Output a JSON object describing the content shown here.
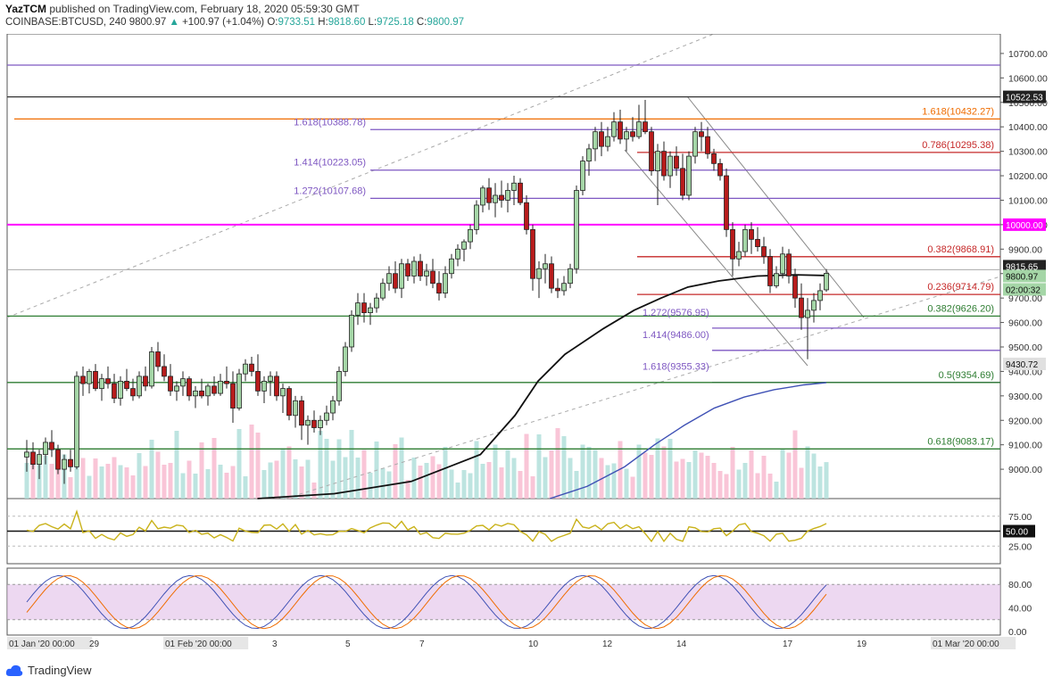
{
  "header": {
    "author": "YazTCM",
    "published_text": "published on TradingView.com, February 18, 2020 05:59:30 GMT",
    "symbol": "COINBASE:BTCUSD, 240",
    "last": "9800.97",
    "change": "+100.97 (+1.04%)",
    "o_label": "O:",
    "o_value": "9733.51",
    "h_label": "H:",
    "h_value": "9818.60",
    "l_label": "L:",
    "l_value": "9725.18",
    "c_label": "C:",
    "c_value": "9800.97"
  },
  "brand": {
    "name": "TradingView"
  },
  "colors": {
    "up": "#26a69a",
    "down": "#ef5350",
    "candle_up_fill": "#a5d6a7",
    "candle_down_fill": "#b71c1c",
    "fib_purple": "#7e57c2",
    "fib_red": "#c62828",
    "fib_orange": "#ef6c00",
    "fib_green": "#2e7d32",
    "magenta": "#ff00ff",
    "ma_black": "#111111",
    "ma_blue": "#3f51b5",
    "rsi": "#c9b21a",
    "stoch_bg": "#e1bee7"
  },
  "chart_data": {
    "type": "candlestick",
    "symbol": "COINBASE:BTCUSD",
    "timeframe": "240",
    "ylim": [
      8880,
      10780
    ],
    "y_ticks": [
      "10700.00",
      "10600.00",
      "10500.00",
      "10400.00",
      "10300.00",
      "10200.00",
      "10100.00",
      "10000.00",
      "9900.00",
      "9800.00",
      "9700.00",
      "9600.00",
      "9500.00",
      "9400.00",
      "9300.00",
      "9200.00",
      "9100.00",
      "9000.00"
    ],
    "x_ticks": [
      "01 Jan '20  00:00",
      "29",
      "01 Feb '20  00:00",
      "3",
      "5",
      "7",
      "10",
      "12",
      "14",
      "17",
      "19",
      "01 Mar '20  00:00"
    ],
    "price_badges": [
      {
        "text": "10522.53",
        "value": 10522.53,
        "kind": "dark"
      },
      {
        "text": "10000.00",
        "value": 10000,
        "kind": "magenta"
      },
      {
        "text": "9815.65",
        "value": 9815.65,
        "kind": "dark"
      },
      {
        "text": "9800.97",
        "value": 9800.97,
        "kind": "green"
      },
      {
        "text": "02:00:32",
        "value": 9770,
        "kind": "green"
      },
      {
        "text": "9430.72",
        "value": 9430.72,
        "kind": "gray"
      }
    ],
    "levels": [
      {
        "label": "1.618(10432.27)",
        "value": 10432.27,
        "color": "orange",
        "side": "right"
      },
      {
        "label": "1.618(10388.78)",
        "value": 10388.78,
        "color": "purple",
        "side": "left"
      },
      {
        "label": "0.786(10295.38)",
        "value": 10295.38,
        "color": "red",
        "side": "right"
      },
      {
        "label": "1.414(10223.05)",
        "value": 10223.05,
        "color": "purple",
        "side": "left"
      },
      {
        "label": "1.272(10107.68)",
        "value": 10107.68,
        "color": "purple",
        "side": "left"
      },
      {
        "label": "0.382(9868.91)",
        "value": 9868.91,
        "color": "red",
        "side": "right"
      },
      {
        "label": "0.236(9714.79)",
        "value": 9714.79,
        "color": "red",
        "side": "right"
      },
      {
        "label": "0.382(9626.20)",
        "value": 9626.2,
        "color": "green",
        "side": "right"
      },
      {
        "label": "1.272(9576.95)",
        "value": 9576.95,
        "color": "purple",
        "side": "mid"
      },
      {
        "label": "1.414(9486.00)",
        "value": 9486.0,
        "color": "purple",
        "side": "mid"
      },
      {
        "label": "1.618(9355.33)",
        "value": 9355.33,
        "color": "purple",
        "side": "mid"
      },
      {
        "label": "0.5(9354.69)",
        "value": 9354.69,
        "color": "green",
        "side": "right"
      },
      {
        "label": "0.618(9083.17)",
        "value": 9083.17,
        "color": "green",
        "side": "right"
      }
    ],
    "candles": [
      [
        9050,
        9120,
        8990,
        9070
      ],
      [
        9070,
        9110,
        9000,
        9020
      ],
      [
        9020,
        9080,
        8960,
        9060
      ],
      [
        9060,
        9130,
        9020,
        9110
      ],
      [
        9110,
        9160,
        9050,
        9080
      ],
      [
        9080,
        9100,
        8980,
        9000
      ],
      [
        9000,
        9060,
        8940,
        9040
      ],
      [
        9040,
        9080,
        8990,
        9010
      ],
      [
        9010,
        9400,
        9000,
        9380
      ],
      [
        9380,
        9420,
        9300,
        9350
      ],
      [
        9350,
        9410,
        9310,
        9400
      ],
      [
        9400,
        9430,
        9320,
        9330
      ],
      [
        9330,
        9390,
        9280,
        9370
      ],
      [
        9370,
        9420,
        9330,
        9350
      ],
      [
        9350,
        9390,
        9270,
        9290
      ],
      [
        9290,
        9380,
        9260,
        9360
      ],
      [
        9360,
        9410,
        9320,
        9330
      ],
      [
        9330,
        9370,
        9280,
        9300
      ],
      [
        9300,
        9400,
        9290,
        9380
      ],
      [
        9380,
        9420,
        9320,
        9340
      ],
      [
        9340,
        9500,
        9330,
        9480
      ],
      [
        9480,
        9520,
        9400,
        9420
      ],
      [
        9420,
        9470,
        9360,
        9380
      ],
      [
        9380,
        9430,
        9300,
        9320
      ],
      [
        9320,
        9360,
        9280,
        9340
      ],
      [
        9340,
        9400,
        9300,
        9370
      ],
      [
        9370,
        9380,
        9280,
        9300
      ],
      [
        9300,
        9340,
        9250,
        9320
      ],
      [
        9320,
        9370,
        9290,
        9300
      ],
      [
        9300,
        9350,
        9260,
        9340
      ],
      [
        9340,
        9380,
        9300,
        9310
      ],
      [
        9310,
        9390,
        9300,
        9360
      ],
      [
        9360,
        9420,
        9330,
        9350
      ],
      [
        9350,
        9400,
        9190,
        9250
      ],
      [
        9250,
        9410,
        9240,
        9390
      ],
      [
        9390,
        9450,
        9360,
        9430
      ],
      [
        9430,
        9460,
        9380,
        9400
      ],
      [
        9400,
        9470,
        9300,
        9320
      ],
      [
        9320,
        9380,
        9270,
        9360
      ],
      [
        9360,
        9400,
        9300,
        9380
      ],
      [
        9380,
        9400,
        9280,
        9300
      ],
      [
        9300,
        9350,
        9230,
        9330
      ],
      [
        9330,
        9340,
        9200,
        9220
      ],
      [
        9220,
        9300,
        9170,
        9280
      ],
      [
        9280,
        9300,
        9120,
        9180
      ],
      [
        9180,
        9220,
        9100,
        9200
      ],
      [
        9200,
        9240,
        9150,
        9170
      ],
      [
        9170,
        9220,
        9140,
        9200
      ],
      [
        9200,
        9260,
        9180,
        9230
      ],
      [
        9230,
        9300,
        9200,
        9280
      ],
      [
        9280,
        9420,
        9260,
        9400
      ],
      [
        9400,
        9520,
        9380,
        9500
      ],
      [
        9500,
        9650,
        9480,
        9630
      ],
      [
        9630,
        9720,
        9590,
        9680
      ],
      [
        9680,
        9720,
        9600,
        9640
      ],
      [
        9640,
        9680,
        9590,
        9660
      ],
      [
        9660,
        9720,
        9640,
        9700
      ],
      [
        9700,
        9780,
        9690,
        9760
      ],
      [
        9760,
        9830,
        9730,
        9800
      ],
      [
        9800,
        9850,
        9720,
        9740
      ],
      [
        9740,
        9860,
        9700,
        9840
      ],
      [
        9840,
        9860,
        9770,
        9790
      ],
      [
        9790,
        9870,
        9760,
        9850
      ],
      [
        9850,
        9880,
        9770,
        9790
      ],
      [
        9790,
        9840,
        9750,
        9810
      ],
      [
        9810,
        9860,
        9740,
        9760
      ],
      [
        9760,
        9810,
        9690,
        9720
      ],
      [
        9720,
        9830,
        9700,
        9800
      ],
      [
        9800,
        9880,
        9780,
        9860
      ],
      [
        9860,
        9920,
        9830,
        9900
      ],
      [
        9900,
        9940,
        9850,
        9930
      ],
      [
        9930,
        10000,
        9900,
        9980
      ],
      [
        9980,
        10100,
        9960,
        10080
      ],
      [
        10080,
        10160,
        10050,
        10150
      ],
      [
        10150,
        10190,
        10060,
        10090
      ],
      [
        10090,
        10170,
        10030,
        10120
      ],
      [
        10120,
        10180,
        10070,
        10100
      ],
      [
        10100,
        10170,
        10050,
        10140
      ],
      [
        10140,
        10200,
        10080,
        10170
      ],
      [
        10170,
        10190,
        10080,
        10090
      ],
      [
        10090,
        10120,
        9960,
        9980
      ],
      [
        9980,
        10000,
        9730,
        9780
      ],
      [
        9780,
        9850,
        9700,
        9820
      ],
      [
        9820,
        9880,
        9760,
        9840
      ],
      [
        9840,
        9870,
        9720,
        9740
      ],
      [
        9740,
        9780,
        9700,
        9730
      ],
      [
        9730,
        9790,
        9710,
        9760
      ],
      [
        9760,
        9840,
        9740,
        9820
      ],
      [
        9820,
        10160,
        9800,
        10140
      ],
      [
        10140,
        10280,
        10120,
        10260
      ],
      [
        10260,
        10330,
        10200,
        10310
      ],
      [
        10310,
        10400,
        10260,
        10380
      ],
      [
        10380,
        10420,
        10280,
        10320
      ],
      [
        10320,
        10400,
        10300,
        10360
      ],
      [
        10360,
        10460,
        10340,
        10420
      ],
      [
        10420,
        10470,
        10330,
        10350
      ],
      [
        10350,
        10400,
        10300,
        10380
      ],
      [
        10380,
        10440,
        10340,
        10360
      ],
      [
        10360,
        10490,
        10350,
        10420
      ],
      [
        10420,
        10510,
        10370,
        10380
      ],
      [
        10380,
        10400,
        10200,
        10220
      ],
      [
        10220,
        10330,
        10080,
        10300
      ],
      [
        10300,
        10340,
        10180,
        10200
      ],
      [
        10200,
        10300,
        10150,
        10280
      ],
      [
        10280,
        10320,
        10200,
        10230
      ],
      [
        10230,
        10290,
        10100,
        10120
      ],
      [
        10120,
        10300,
        10100,
        10280
      ],
      [
        10280,
        10400,
        10250,
        10380
      ],
      [
        10380,
        10420,
        10300,
        10360
      ],
      [
        10360,
        10400,
        10270,
        10290
      ],
      [
        10290,
        10310,
        10220,
        10250
      ],
      [
        10250,
        10270,
        10180,
        10200
      ],
      [
        10200,
        10230,
        9950,
        9980
      ],
      [
        9980,
        10010,
        9790,
        9860
      ],
      [
        9860,
        9930,
        9830,
        9890
      ],
      [
        9890,
        10000,
        9870,
        9980
      ],
      [
        9980,
        10010,
        9880,
        9940
      ],
      [
        9940,
        9990,
        9890,
        9910
      ],
      [
        9910,
        9950,
        9840,
        9870
      ],
      [
        9870,
        9900,
        9720,
        9750
      ],
      [
        9750,
        9830,
        9740,
        9800
      ],
      [
        9800,
        9910,
        9780,
        9880
      ],
      [
        9880,
        9900,
        9760,
        9790
      ],
      [
        9790,
        9820,
        9660,
        9700
      ],
      [
        9700,
        9760,
        9570,
        9620
      ],
      [
        9620,
        9700,
        9450,
        9650
      ],
      [
        9650,
        9720,
        9600,
        9690
      ],
      [
        9690,
        9760,
        9650,
        9730
      ],
      [
        9733.51,
        9818.6,
        9725.18,
        9800.97
      ]
    ],
    "ma_black": [
      [
        60,
        8880
      ],
      [
        80,
        8900
      ],
      [
        100,
        8950
      ],
      [
        118,
        9060
      ],
      [
        127,
        9220
      ],
      [
        133,
        9360
      ],
      [
        140,
        9470
      ],
      [
        150,
        9575
      ],
      [
        158,
        9650
      ],
      [
        165,
        9700
      ],
      [
        172,
        9745
      ],
      [
        180,
        9770
      ],
      [
        190,
        9790
      ],
      [
        200,
        9795
      ],
      [
        208,
        9792
      ]
    ],
    "ma_blue": [
      [
        140,
        8880
      ],
      [
        150,
        8930
      ],
      [
        160,
        9010
      ],
      [
        168,
        9100
      ],
      [
        176,
        9180
      ],
      [
        184,
        9250
      ],
      [
        192,
        9295
      ],
      [
        200,
        9325
      ],
      [
        208,
        9345
      ],
      [
        214,
        9354
      ]
    ],
    "rsi": {
      "levels": [
        75,
        50,
        25
      ],
      "highlight": 50,
      "badge": "50.00",
      "ticks": [
        "75.00",
        "25.00"
      ]
    },
    "stoch": {
      "ticks": [
        "80.00",
        "40.00",
        "0.00"
      ]
    }
  }
}
